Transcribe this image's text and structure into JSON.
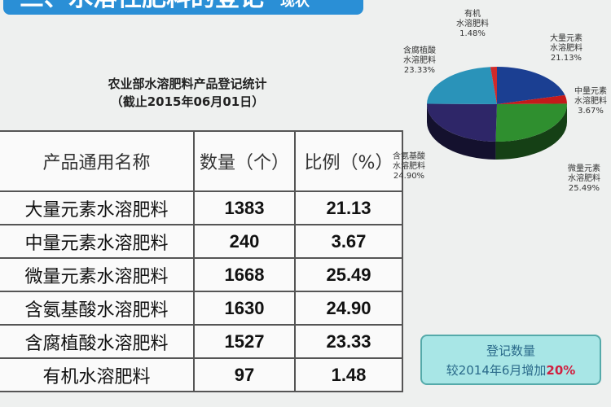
{
  "header": {
    "title": "三、水溶性肥料的登记",
    "suffix": "现状"
  },
  "table_title": {
    "line1": "农业部水溶肥料产品登记统计",
    "line2": "（截止2015年06月01日）"
  },
  "chart_data": [
    {
      "type": "table",
      "columns": [
        "产品通用名称",
        "数量（个）",
        "比例（%）"
      ],
      "rows": [
        [
          "大量元素水溶肥料",
          "1383",
          "21.13"
        ],
        [
          "中量元素水溶肥料",
          "240",
          "3.67"
        ],
        [
          "微量元素水溶肥料",
          "1668",
          "25.49"
        ],
        [
          "含氨基酸水溶肥料",
          "1630",
          "24.90"
        ],
        [
          "含腐植酸水溶肥料",
          "1527",
          "23.33"
        ],
        [
          "有机水溶肥料",
          "97",
          "1.48"
        ]
      ]
    },
    {
      "type": "pie",
      "slices": [
        {
          "label": "大量元素水溶肥料",
          "pct": "21.13%",
          "value": 21.13,
          "color": "#1b3f92"
        },
        {
          "label": "中量元素水溶肥料",
          "pct": "3.67%",
          "value": 3.67,
          "color": "#c41a1a"
        },
        {
          "label": "微量元素水溶肥料",
          "pct": "25.49%",
          "value": 25.49,
          "color": "#2f8f2f"
        },
        {
          "label": "含氨基酸水溶肥料",
          "pct": "24.90%",
          "value": 24.9,
          "color": "#2e2668"
        },
        {
          "label": "含腐植酸水溶肥料",
          "pct": "23.33%",
          "value": 23.33,
          "color": "#2a93b9"
        },
        {
          "label": "有机水溶肥料",
          "pct": "1.48%",
          "value": 1.48,
          "color": "#d02a2a"
        }
      ]
    }
  ],
  "callout": {
    "line1": "登记数量",
    "line2": "较2014年6月增加",
    "highlight": "20%"
  }
}
